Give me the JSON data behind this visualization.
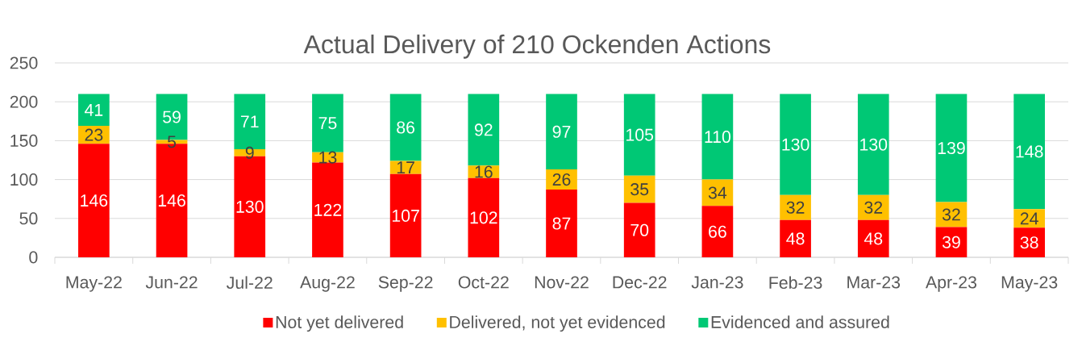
{
  "chart_data": {
    "type": "bar",
    "title": "Actual Delivery of 210 Ockenden Actions",
    "categories": [
      "May-22",
      "Jun-22",
      "Jul-22",
      "Aug-22",
      "Sep-22",
      "Oct-22",
      "Nov-22",
      "Dec-22",
      "Jan-23",
      "Feb-23",
      "Mar-23",
      "Apr-23",
      "May-23"
    ],
    "stacked": true,
    "series": [
      {
        "name": "Not yet delivered",
        "color": "#ff0000",
        "values": [
          146,
          146,
          130,
          122,
          107,
          102,
          87,
          70,
          66,
          48,
          48,
          39,
          38
        ]
      },
      {
        "name": "Delivered, not yet evidenced",
        "color": "#ffc000",
        "values": [
          23,
          5,
          9,
          13,
          17,
          16,
          26,
          35,
          34,
          32,
          32,
          32,
          24
        ]
      },
      {
        "name": "Evidenced and assured",
        "color": "#00c875",
        "values": [
          41,
          59,
          71,
          75,
          86,
          92,
          97,
          105,
          110,
          130,
          130,
          139,
          148
        ]
      }
    ],
    "ylim": [
      0,
      250
    ],
    "yticks": [
      0,
      50,
      100,
      150,
      200,
      250
    ],
    "grid": "y",
    "legend": "bottom",
    "data_labels": true
  }
}
